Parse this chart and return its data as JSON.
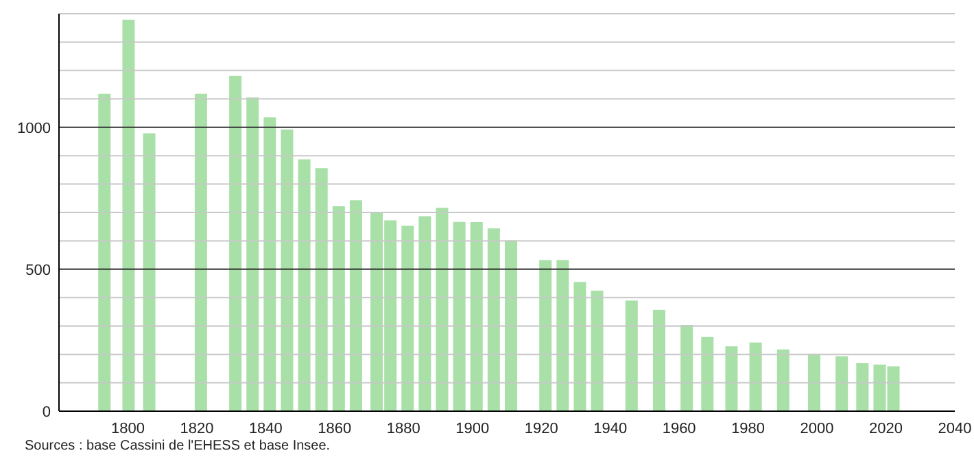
{
  "chart_data": {
    "type": "bar",
    "x": [
      1793,
      1800,
      1806,
      1821,
      1831,
      1836,
      1841,
      1846,
      1851,
      1856,
      1861,
      1866,
      1872,
      1876,
      1881,
      1886,
      1891,
      1896,
      1901,
      1906,
      1911,
      1921,
      1926,
      1931,
      1936,
      1946,
      1954,
      1962,
      1968,
      1975,
      1982,
      1990,
      1999,
      2007,
      2013,
      2018,
      2022
    ],
    "values": [
      1118,
      1379,
      979,
      1118,
      1181,
      1105,
      1035,
      992,
      887,
      856,
      722,
      743,
      701,
      672,
      653,
      687,
      716,
      667,
      666,
      644,
      602,
      532,
      532,
      455,
      424,
      390,
      357,
      304,
      261,
      229,
      242,
      217,
      203,
      193,
      169,
      164,
      158
    ],
    "color": "#a8e0a8",
    "xlim": [
      1780,
      2040
    ],
    "xticks": [
      1800,
      1820,
      1840,
      1860,
      1880,
      1900,
      1920,
      1940,
      1960,
      1980,
      2000,
      2020,
      2040
    ],
    "ylim": [
      0,
      1400
    ],
    "yticks": [
      0,
      {
        "value": 100,
        "label": null
      },
      {
        "value": 200,
        "label": null
      },
      {
        "value": 300,
        "label": null
      },
      {
        "value": 400,
        "label": null
      },
      500,
      {
        "value": 600,
        "label": null
      },
      {
        "value": 700,
        "label": null
      },
      {
        "value": 800,
        "label": null
      },
      {
        "value": 900,
        "label": null
      },
      1000,
      {
        "value": 1100,
        "label": null
      },
      {
        "value": 1200,
        "label": null
      },
      {
        "value": 1300,
        "label": null
      },
      {
        "value": 1400,
        "label": null
      }
    ],
    "grid": "y",
    "annotations": [
      "Sources : base Cassini de l'EHESS et base Insee."
    ]
  }
}
